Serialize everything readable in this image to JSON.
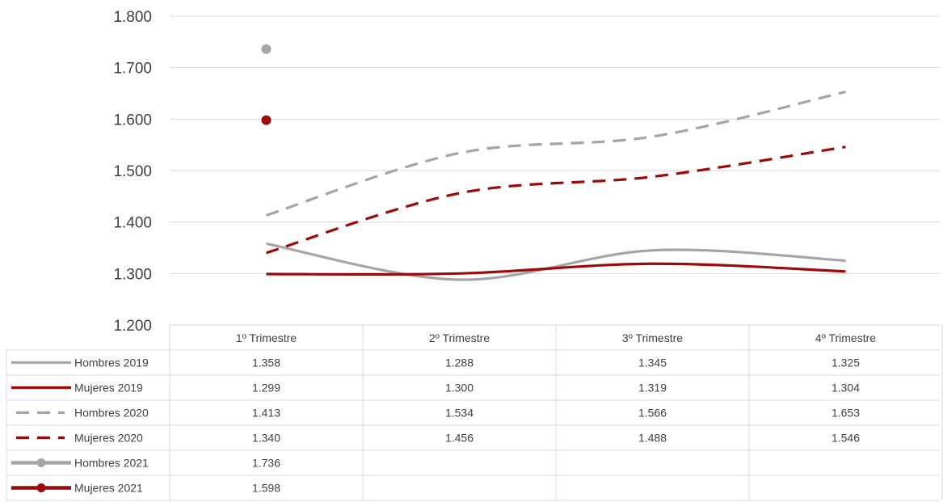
{
  "chart_data": {
    "type": "line",
    "categories": [
      "1º Trimestre",
      "2º Trimestre",
      "3º Trimestre",
      "4º Trimestre"
    ],
    "ylim": [
      1200,
      1800
    ],
    "yticks": [
      1200,
      1300,
      1400,
      1500,
      1600,
      1700,
      1800
    ],
    "ytick_labels": [
      "1.200",
      "1.300",
      "1.400",
      "1.500",
      "1.600",
      "1.700",
      "1.800"
    ],
    "grid": true,
    "legend": "data-table",
    "series": [
      {
        "name": "Hombres 2019",
        "values": [
          1358,
          1288,
          1345,
          1325
        ],
        "labels": [
          "1.358",
          "1.288",
          "1.345",
          "1.325"
        ],
        "color": "#a5a5a5",
        "style": "solid"
      },
      {
        "name": "Mujeres 2019",
        "values": [
          1299,
          1300,
          1319,
          1304
        ],
        "labels": [
          "1.299",
          "1.300",
          "1.319",
          "1.304"
        ],
        "color": "#9b0a0a",
        "style": "solid"
      },
      {
        "name": "Hombres 2020",
        "values": [
          1413,
          1534,
          1566,
          1653
        ],
        "labels": [
          "1.413",
          "1.534",
          "1.566",
          "1.653"
        ],
        "color": "#a5a5a5",
        "style": "dashed"
      },
      {
        "name": "Mujeres 2020",
        "values": [
          1340,
          1456,
          1488,
          1546
        ],
        "labels": [
          "1.340",
          "1.456",
          "1.488",
          "1.546"
        ],
        "color": "#9b0a0a",
        "style": "dashed"
      },
      {
        "name": "Hombres 2021",
        "values": [
          1736,
          null,
          null,
          null
        ],
        "labels": [
          "1.736",
          "",
          "",
          ""
        ],
        "color": "#a5a5a5",
        "style": "marker"
      },
      {
        "name": "Mujeres 2021",
        "values": [
          1598,
          null,
          null,
          null
        ],
        "labels": [
          "1.598",
          "",
          "",
          ""
        ],
        "color": "#9b0a0a",
        "style": "marker"
      }
    ]
  }
}
